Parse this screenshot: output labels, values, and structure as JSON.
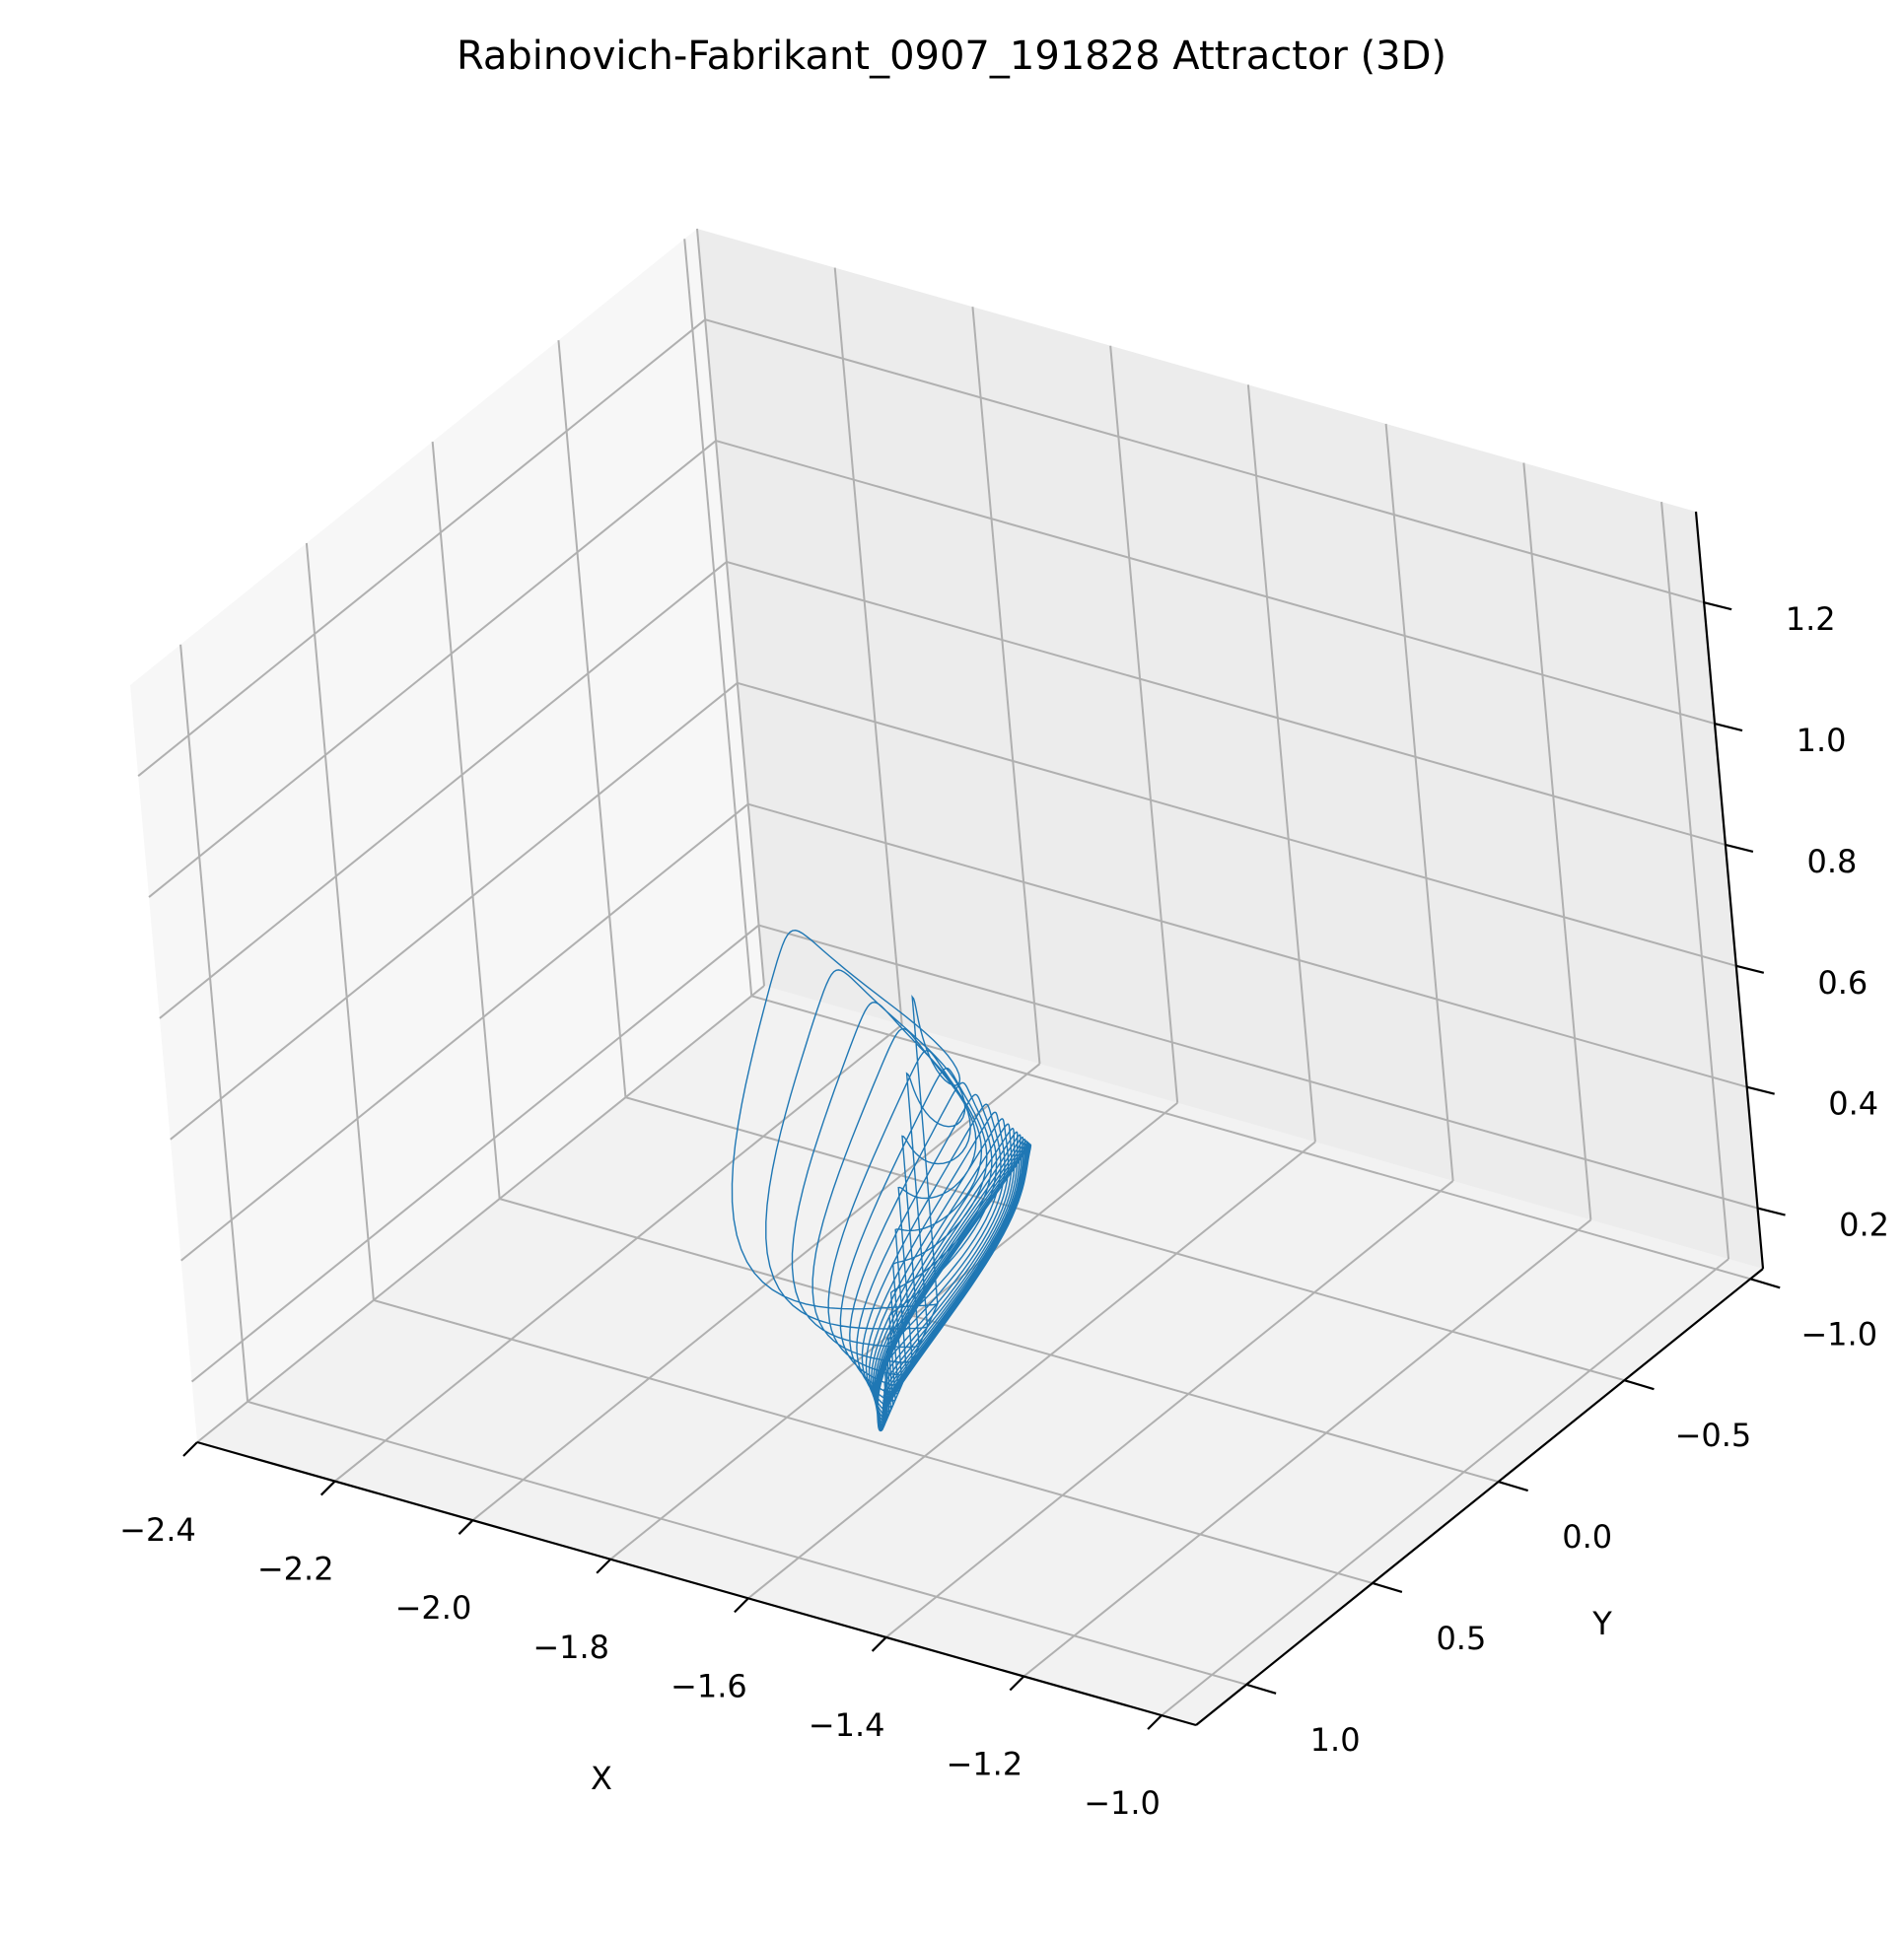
{
  "chart_data": {
    "type": "line",
    "projection": "3d",
    "title": "Rabinovich-Fabrikant_0907_191828 Attractor (3D)",
    "xlabel": "X",
    "ylabel": "Y",
    "zlabel": "",
    "xlim": [
      -2.4,
      -0.95
    ],
    "ylim": [
      -1.05,
      1.2
    ],
    "zlim": [
      0.1,
      1.35
    ],
    "x_ticks": [
      "−2.4",
      "−2.2",
      "−2.0",
      "−1.8",
      "−1.6",
      "−1.4",
      "−1.2",
      "−1.0"
    ],
    "y_ticks": [
      "−1.0",
      "−0.5",
      "0.0",
      "0.5",
      "1.0"
    ],
    "z_ticks": [
      "0.2",
      "0.4",
      "0.6",
      "0.8",
      "1.0",
      "1.2"
    ],
    "grid": true,
    "series": [
      {
        "color": "#1f77b4",
        "description": "spiralling trajectory loops converging to a tight cycle",
        "loops": 22,
        "tip_z_first": 1.08,
        "tip_z_decay": 0.82
      }
    ]
  }
}
